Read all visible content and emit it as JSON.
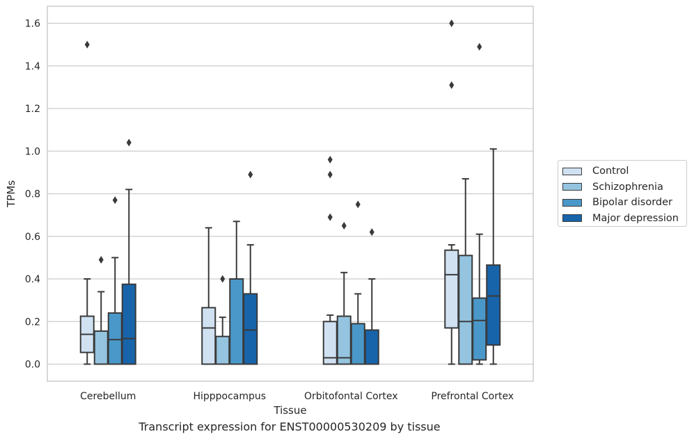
{
  "chart_data": {
    "type": "boxplot",
    "xlabel": "Tissue",
    "ylabel": "TPMs",
    "ylim": [
      -0.08,
      1.68
    ],
    "yticks": [
      "0.0",
      "0.2",
      "0.4",
      "0.6",
      "0.8",
      "1.0",
      "1.2",
      "1.4",
      "1.6"
    ],
    "grid": true,
    "legend_position": "right",
    "categories": [
      "Cerebellum",
      "Hipppocampus",
      "Orbitofontal Cortex",
      "Prefrontal Cortex"
    ],
    "series": [
      {
        "name": "Control",
        "color": "#d0e1f2",
        "boxes": [
          {
            "min": 0.0,
            "q1": 0.055,
            "median": 0.14,
            "q3": 0.225,
            "max": 0.4,
            "outliers": [
              1.5
            ]
          },
          {
            "min": 0.0,
            "q1": 0.0,
            "median": 0.17,
            "q3": 0.265,
            "max": 0.64,
            "outliers": []
          },
          {
            "min": 0.0,
            "q1": 0.0,
            "median": 0.03,
            "q3": 0.2,
            "max": 0.23,
            "outliers": [
              0.69,
              0.89,
              0.96
            ]
          },
          {
            "min": 0.0,
            "q1": 0.17,
            "median": 0.42,
            "q3": 0.535,
            "max": 0.56,
            "outliers": [
              1.31,
              1.6
            ]
          }
        ]
      },
      {
        "name": "Schizophrenia",
        "color": "#94c4df",
        "boxes": [
          {
            "min": 0.0,
            "q1": 0.0,
            "median": 0.0,
            "q3": 0.155,
            "max": 0.34,
            "outliers": [
              0.49
            ]
          },
          {
            "min": 0.0,
            "q1": 0.0,
            "median": 0.0,
            "q3": 0.13,
            "max": 0.22,
            "outliers": [
              0.4
            ]
          },
          {
            "min": 0.0,
            "q1": 0.0,
            "median": 0.03,
            "q3": 0.225,
            "max": 0.43,
            "outliers": [
              0.65
            ]
          },
          {
            "min": 0.0,
            "q1": 0.0,
            "median": 0.2,
            "q3": 0.51,
            "max": 0.87,
            "outliers": []
          }
        ]
      },
      {
        "name": "Bipolar disorder",
        "color": "#4a98c9",
        "boxes": [
          {
            "min": 0.0,
            "q1": 0.0,
            "median": 0.115,
            "q3": 0.24,
            "max": 0.5,
            "outliers": [
              0.77
            ]
          },
          {
            "min": 0.0,
            "q1": 0.0,
            "median": 0.0,
            "q3": 0.4,
            "max": 0.67,
            "outliers": []
          },
          {
            "min": 0.0,
            "q1": 0.0,
            "median": 0.0,
            "q3": 0.19,
            "max": 0.33,
            "outliers": [
              0.75
            ]
          },
          {
            "min": 0.0,
            "q1": 0.02,
            "median": 0.205,
            "q3": 0.31,
            "max": 0.61,
            "outliers": [
              1.49
            ]
          }
        ]
      },
      {
        "name": "Major depression",
        "color": "#1764ab",
        "boxes": [
          {
            "min": 0.0,
            "q1": 0.0,
            "median": 0.12,
            "q3": 0.375,
            "max": 0.82,
            "outliers": [
              1.04
            ]
          },
          {
            "min": 0.0,
            "q1": 0.0,
            "median": 0.16,
            "q3": 0.33,
            "max": 0.56,
            "outliers": [
              0.89
            ]
          },
          {
            "min": 0.0,
            "q1": 0.0,
            "median": 0.0,
            "q3": 0.16,
            "max": 0.4,
            "outliers": [
              0.62
            ]
          },
          {
            "min": 0.0,
            "q1": 0.09,
            "median": 0.32,
            "q3": 0.465,
            "max": 1.01,
            "outliers": []
          }
        ]
      }
    ]
  },
  "caption": "Transcript expression for ENST00000530209 by tissue"
}
